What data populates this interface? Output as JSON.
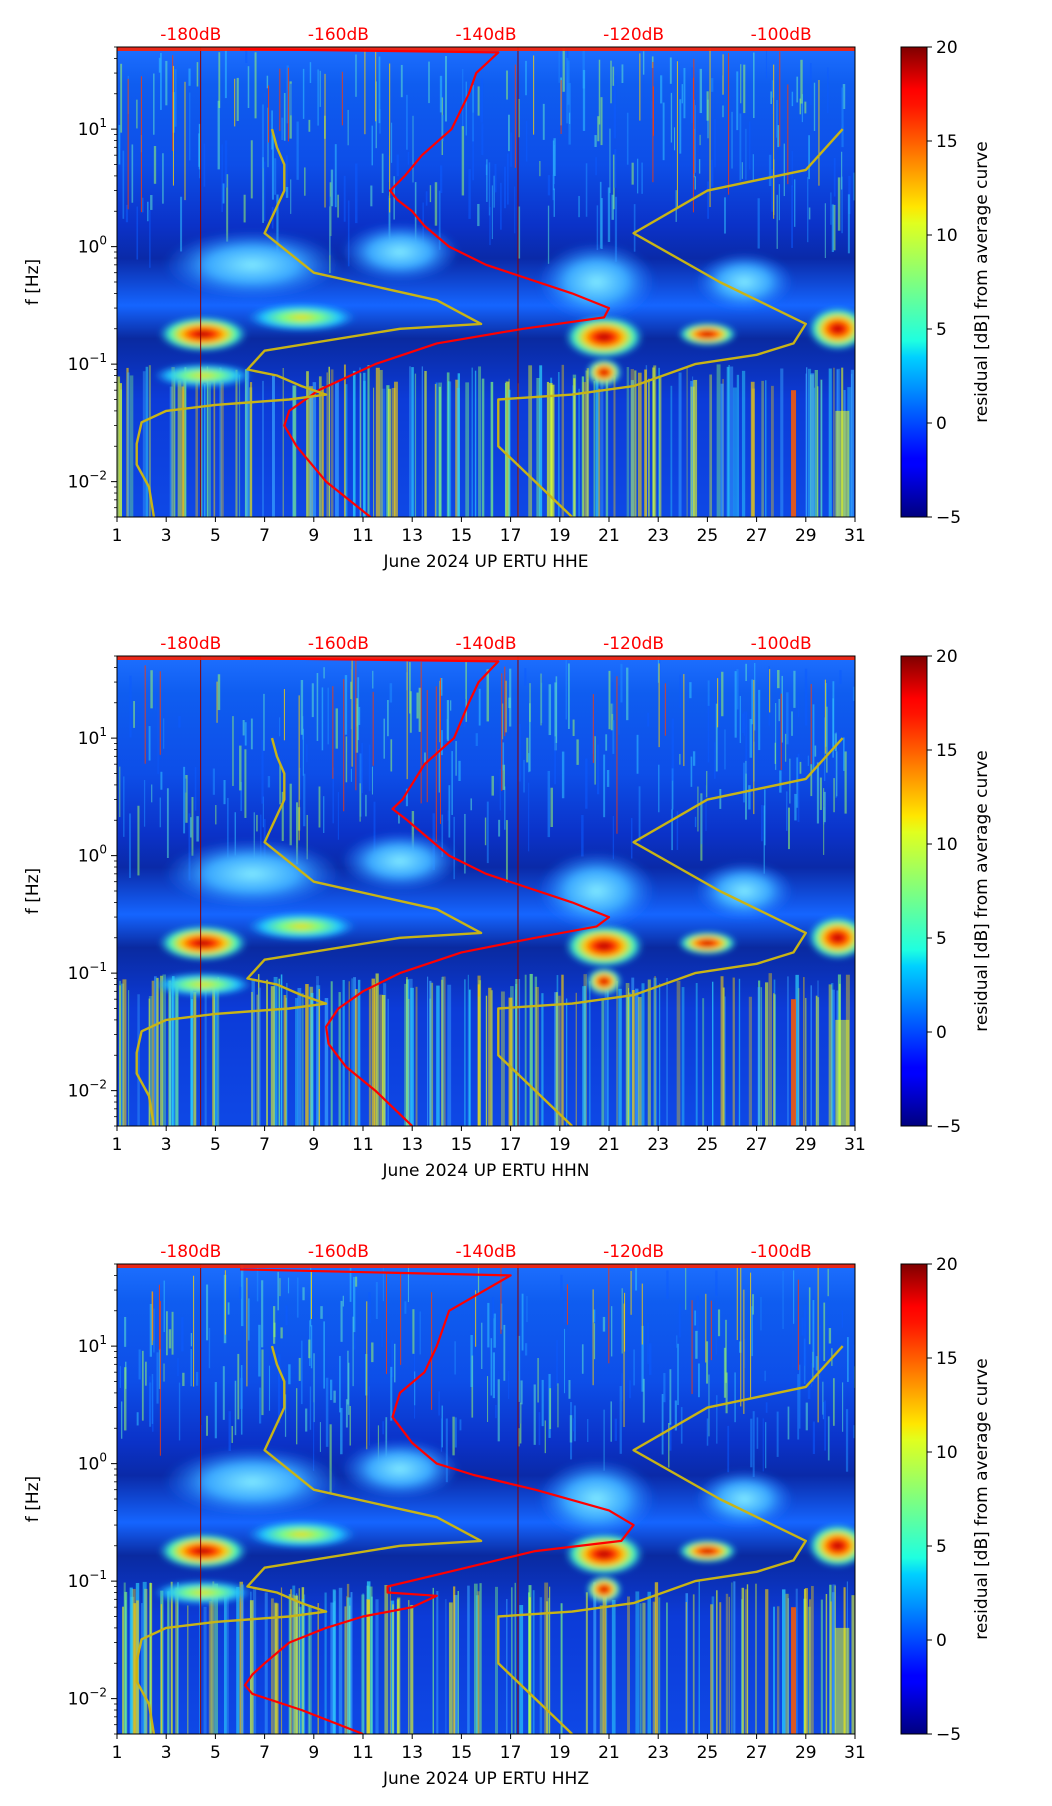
{
  "figure": {
    "colorbar": {
      "label": "residual [dB] from average curve",
      "min": -5,
      "max": 20,
      "ticks": [
        "−5",
        "0",
        "5",
        "10",
        "15",
        "20"
      ],
      "tick_values": [
        -5,
        0,
        5,
        10,
        15,
        20
      ],
      "colormap": "jet"
    }
  },
  "chart_data": [
    {
      "type": "heatmap",
      "title": "",
      "xlabel": "June 2024 UP ERTU  HHE",
      "ylabel": "f [Hz]",
      "xlim": [
        1,
        31
      ],
      "ylim": [
        0.005,
        50
      ],
      "yscale": "log",
      "x_ticks": [
        "1",
        "3",
        "5",
        "7",
        "9",
        "11",
        "13",
        "15",
        "17",
        "19",
        "21",
        "23",
        "25",
        "27",
        "29",
        "31"
      ],
      "x_tick_values": [
        1,
        3,
        5,
        7,
        9,
        11,
        13,
        15,
        17,
        19,
        21,
        23,
        25,
        27,
        29,
        31
      ],
      "y_ticks": [
        {
          "mant": "10",
          "exp": "−2",
          "value": 0.01
        },
        {
          "mant": "10",
          "exp": "−1",
          "value": 0.1
        },
        {
          "mant": "10",
          "exp": "0",
          "value": 1
        },
        {
          "mant": "10",
          "exp": "1",
          "value": 10
        }
      ],
      "top_axis_labels": [
        "-180dB",
        "-160dB",
        "-140dB",
        "-120dB",
        "-100dB"
      ],
      "top_axis_positions": [
        4,
        10,
        16,
        22,
        28
      ],
      "top_axis_color": "#ff0000",
      "series": [
        {
          "name": "average curve (red)",
          "color": "#ff0000",
          "x": [
            11.3,
            9.5,
            8.3,
            7.8,
            8.0,
            9.2,
            11.5,
            14.0,
            17.5,
            20.8,
            21.0,
            19.5,
            16.0,
            14.5,
            13.5,
            13.0,
            12.4,
            12.1,
            12.7,
            13.4,
            14.6,
            15.3,
            15.6,
            16.5,
            6.0
          ],
          "y": [
            0.005,
            0.01,
            0.02,
            0.03,
            0.04,
            0.06,
            0.1,
            0.15,
            0.2,
            0.25,
            0.3,
            0.4,
            0.7,
            1.0,
            1.5,
            2.0,
            2.5,
            3.0,
            4.0,
            6.0,
            10.0,
            20.0,
            30.0,
            45.0,
            48.0
          ]
        },
        {
          "name": "model low (yellow)",
          "color": "#c8b416",
          "x": [
            2.5,
            2.3,
            1.8,
            1.8,
            2.0,
            3.0,
            5.0,
            8.0,
            9.5,
            8.5,
            7.5,
            6.3,
            7.0,
            12.5,
            15.8,
            14.0,
            9.0,
            7.0,
            7.8,
            7.8,
            7.5,
            7.3
          ],
          "y": [
            0.005,
            0.009,
            0.014,
            0.021,
            0.032,
            0.04,
            0.045,
            0.05,
            0.055,
            0.065,
            0.08,
            0.09,
            0.13,
            0.2,
            0.22,
            0.35,
            0.6,
            1.3,
            3.0,
            5.0,
            7.0,
            10.0
          ]
        },
        {
          "name": "model high (yellow)",
          "color": "#c8b416",
          "x": [
            19.5,
            16.5,
            16.5,
            19.5,
            22.0,
            24.5,
            27.0,
            28.5,
            29.0,
            25.5,
            22.0,
            25.0,
            29.0,
            30.5
          ],
          "y": [
            0.005,
            0.02,
            0.05,
            0.055,
            0.065,
            0.1,
            0.12,
            0.15,
            0.22,
            0.5,
            1.3,
            3.0,
            4.5,
            10.0
          ]
        }
      ]
    },
    {
      "type": "heatmap",
      "title": "",
      "xlabel": "June 2024 UP ERTU  HHN",
      "ylabel": "f [Hz]",
      "xlim": [
        1,
        31
      ],
      "ylim": [
        0.005,
        50
      ],
      "yscale": "log",
      "x_ticks": [
        "1",
        "3",
        "5",
        "7",
        "9",
        "11",
        "13",
        "15",
        "17",
        "19",
        "21",
        "23",
        "25",
        "27",
        "29",
        "31"
      ],
      "x_tick_values": [
        1,
        3,
        5,
        7,
        9,
        11,
        13,
        15,
        17,
        19,
        21,
        23,
        25,
        27,
        29,
        31
      ],
      "y_ticks": [
        {
          "mant": "10",
          "exp": "−2",
          "value": 0.01
        },
        {
          "mant": "10",
          "exp": "−1",
          "value": 0.1
        },
        {
          "mant": "10",
          "exp": "0",
          "value": 1
        },
        {
          "mant": "10",
          "exp": "1",
          "value": 10
        }
      ],
      "top_axis_labels": [
        "-180dB",
        "-160dB",
        "-140dB",
        "-120dB",
        "-100dB"
      ],
      "top_axis_positions": [
        4,
        10,
        16,
        22,
        28
      ],
      "top_axis_color": "#ff0000",
      "series": [
        {
          "name": "average curve (red)",
          "color": "#ff0000",
          "x": [
            13.0,
            11.5,
            10.3,
            9.6,
            9.5,
            10.0,
            11.0,
            12.5,
            15.0,
            18.0,
            20.5,
            21.0,
            19.5,
            16.0,
            14.5,
            13.5,
            12.8,
            12.2,
            12.6,
            13.5,
            14.7,
            15.3,
            15.7,
            16.5,
            6.0
          ],
          "y": [
            0.005,
            0.01,
            0.016,
            0.025,
            0.035,
            0.05,
            0.07,
            0.1,
            0.15,
            0.2,
            0.25,
            0.3,
            0.4,
            0.7,
            1.0,
            1.5,
            2.0,
            2.5,
            3.0,
            6.0,
            10.0,
            20.0,
            30.0,
            45.0,
            48.0
          ]
        },
        {
          "name": "model low (yellow)",
          "color": "#c8b416",
          "x": [
            2.5,
            2.3,
            1.8,
            1.8,
            2.0,
            3.0,
            5.0,
            8.0,
            9.5,
            8.5,
            7.5,
            6.3,
            7.0,
            12.5,
            15.8,
            14.0,
            9.0,
            7.0,
            7.8,
            7.8,
            7.5,
            7.3
          ],
          "y": [
            0.005,
            0.009,
            0.014,
            0.021,
            0.032,
            0.04,
            0.045,
            0.05,
            0.055,
            0.065,
            0.08,
            0.09,
            0.13,
            0.2,
            0.22,
            0.35,
            0.6,
            1.3,
            3.0,
            5.0,
            7.0,
            10.0
          ]
        },
        {
          "name": "model high (yellow)",
          "color": "#c8b416",
          "x": [
            19.5,
            16.5,
            16.5,
            19.5,
            22.0,
            24.5,
            27.0,
            28.5,
            29.0,
            25.5,
            22.0,
            25.0,
            29.0,
            30.5
          ],
          "y": [
            0.005,
            0.02,
            0.05,
            0.055,
            0.065,
            0.1,
            0.12,
            0.15,
            0.22,
            0.5,
            1.3,
            3.0,
            4.5,
            10.0
          ]
        }
      ]
    },
    {
      "type": "heatmap",
      "title": "",
      "xlabel": "June 2024 UP ERTU  HHZ",
      "ylabel": "f [Hz]",
      "xlim": [
        1,
        31
      ],
      "ylim": [
        0.005,
        50
      ],
      "yscale": "log",
      "x_ticks": [
        "1",
        "3",
        "5",
        "7",
        "9",
        "11",
        "13",
        "15",
        "17",
        "19",
        "21",
        "23",
        "25",
        "27",
        "29",
        "31"
      ],
      "x_tick_values": [
        1,
        3,
        5,
        7,
        9,
        11,
        13,
        15,
        17,
        19,
        21,
        23,
        25,
        27,
        29,
        31
      ],
      "y_ticks": [
        {
          "mant": "10",
          "exp": "−2",
          "value": 0.01
        },
        {
          "mant": "10",
          "exp": "−1",
          "value": 0.1
        },
        {
          "mant": "10",
          "exp": "0",
          "value": 1
        },
        {
          "mant": "10",
          "exp": "1",
          "value": 10
        }
      ],
      "top_axis_labels": [
        "-180dB",
        "-160dB",
        "-140dB",
        "-120dB",
        "-100dB"
      ],
      "top_axis_positions": [
        4,
        10,
        16,
        22,
        28
      ],
      "top_axis_color": "#ff0000",
      "series": [
        {
          "name": "average curve (red)",
          "color": "#ff0000",
          "x": [
            11.0,
            8.5,
            6.5,
            6.2,
            6.5,
            7.0,
            8.0,
            9.5,
            11.0,
            13.0,
            14.0,
            12.0,
            12.0,
            14.5,
            18.0,
            21.5,
            22.0,
            21.0,
            18.0,
            15.5,
            14.0,
            13.0,
            12.2,
            12.5,
            13.5,
            14.0,
            14.5,
            17.0,
            6.0
          ],
          "y": [
            0.005,
            0.008,
            0.011,
            0.013,
            0.016,
            0.02,
            0.03,
            0.04,
            0.05,
            0.06,
            0.075,
            0.08,
            0.09,
            0.12,
            0.18,
            0.22,
            0.3,
            0.4,
            0.6,
            0.8,
            1.0,
            1.5,
            2.5,
            4.0,
            6.0,
            10.0,
            20.0,
            40.0,
            45.0
          ]
        },
        {
          "name": "model low (yellow)",
          "color": "#c8b416",
          "x": [
            2.5,
            2.3,
            1.8,
            1.8,
            2.0,
            3.0,
            5.0,
            8.0,
            9.5,
            8.5,
            7.5,
            6.3,
            7.0,
            12.5,
            15.8,
            14.0,
            9.0,
            7.0,
            7.8,
            7.8,
            7.5,
            7.3
          ],
          "y": [
            0.005,
            0.009,
            0.014,
            0.021,
            0.032,
            0.04,
            0.045,
            0.05,
            0.055,
            0.065,
            0.08,
            0.09,
            0.13,
            0.2,
            0.22,
            0.35,
            0.6,
            1.3,
            3.0,
            5.0,
            7.0,
            10.0
          ]
        },
        {
          "name": "model high (yellow)",
          "color": "#c8b416",
          "x": [
            19.5,
            16.5,
            16.5,
            19.5,
            22.0,
            24.5,
            27.0,
            28.5,
            29.0,
            25.5,
            22.0,
            25.0,
            29.0,
            30.5
          ],
          "y": [
            0.005,
            0.02,
            0.05,
            0.055,
            0.065,
            0.1,
            0.12,
            0.15,
            0.22,
            0.5,
            1.3,
            3.0,
            4.5,
            10.0
          ]
        }
      ]
    }
  ]
}
